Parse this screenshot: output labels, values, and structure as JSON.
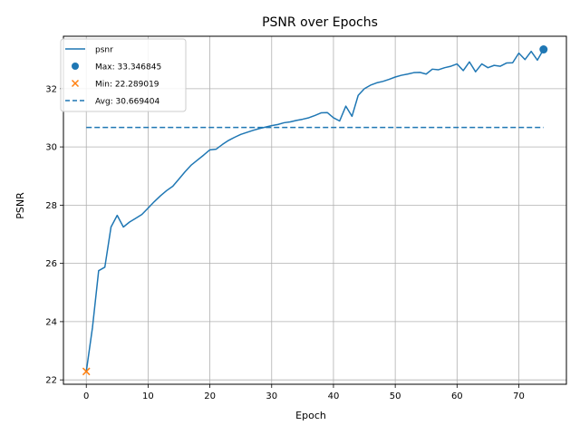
{
  "chart_data": {
    "type": "line",
    "title": "PSNR over Epochs",
    "xlabel": "Epoch",
    "ylabel": "PSNR",
    "xlim": [
      -3.7,
      77.7
    ],
    "ylim": [
      21.85,
      33.8
    ],
    "xticks": [
      0,
      10,
      20,
      30,
      40,
      50,
      60,
      70
    ],
    "yticks": [
      22,
      24,
      26,
      28,
      30,
      32
    ],
    "grid": true,
    "legend_position": "top-left",
    "colors": {
      "line": "#1f77b4",
      "max": "#1f77b4",
      "min": "#ff7f0e",
      "avg": "#1f77b4"
    },
    "series": [
      {
        "name": "psnr",
        "style": "line",
        "x": [
          0,
          1,
          2,
          3,
          4,
          5,
          6,
          7,
          8,
          9,
          10,
          11,
          12,
          13,
          14,
          15,
          16,
          17,
          18,
          19,
          20,
          21,
          22,
          23,
          24,
          25,
          26,
          27,
          28,
          29,
          30,
          31,
          32,
          33,
          34,
          35,
          36,
          37,
          38,
          39,
          40,
          41,
          42,
          43,
          44,
          45,
          46,
          47,
          48,
          49,
          50,
          51,
          52,
          53,
          54,
          55,
          56,
          57,
          58,
          59,
          60,
          61,
          62,
          63,
          64,
          65,
          66,
          67,
          68,
          69,
          70,
          71,
          72,
          73,
          74
        ],
        "y": [
          22.29,
          23.8,
          25.75,
          25.87,
          27.25,
          27.65,
          27.25,
          27.42,
          27.55,
          27.68,
          27.9,
          28.12,
          28.32,
          28.5,
          28.65,
          28.9,
          29.15,
          29.38,
          29.55,
          29.72,
          29.9,
          29.92,
          30.08,
          30.22,
          30.33,
          30.43,
          30.5,
          30.57,
          30.63,
          30.68,
          30.73,
          30.77,
          30.83,
          30.86,
          30.91,
          30.95,
          31.0,
          31.08,
          31.17,
          31.18,
          31.0,
          30.89,
          31.4,
          31.05,
          31.77,
          32.0,
          32.12,
          32.2,
          32.25,
          32.32,
          32.4,
          32.46,
          32.5,
          32.55,
          32.56,
          32.5,
          32.67,
          32.65,
          32.72,
          32.77,
          32.85,
          32.62,
          32.92,
          32.58,
          32.85,
          32.72,
          32.8,
          32.77,
          32.88,
          32.89,
          33.22,
          33.0,
          33.28,
          32.98,
          33.35
        ]
      },
      {
        "name": "Max: 33.346845",
        "style": "point",
        "marker": "circle",
        "x": 74,
        "y": 33.346845
      },
      {
        "name": "Min: 22.289019",
        "style": "point",
        "marker": "x",
        "x": 0,
        "y": 22.289019
      },
      {
        "name": "Avg: 30.669404",
        "style": "dashed",
        "x": [
          0,
          74
        ],
        "y": 30.669404
      }
    ]
  }
}
